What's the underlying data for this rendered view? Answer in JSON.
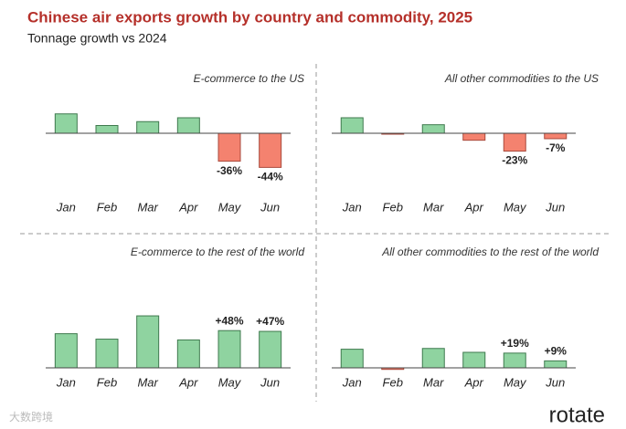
{
  "title": "Chinese air exports growth by country and commodity, 2025",
  "subtitle": "Tonnage growth vs 2024",
  "brand": "rotate",
  "watermark": "大数跨境",
  "chart_data": [
    {
      "type": "bar",
      "title": "E-commerce to the US",
      "categories": [
        "Jan",
        "Feb",
        "Mar",
        "Apr",
        "May",
        "Jun"
      ],
      "values": [
        25,
        10,
        15,
        20,
        -36,
        -44
      ],
      "value_labels": [
        null,
        null,
        null,
        null,
        "-36%",
        "-44%"
      ],
      "ylim": [
        -50,
        50
      ],
      "positive_color": "#8fd3a0",
      "negative_color": "#f4826f"
    },
    {
      "type": "bar",
      "title": "All other commodities to the US",
      "categories": [
        "Jan",
        "Feb",
        "Mar",
        "Apr",
        "May",
        "Jun"
      ],
      "values": [
        20,
        -1,
        11,
        -9,
        -23,
        -7
      ],
      "value_labels": [
        null,
        null,
        null,
        null,
        "-23%",
        "-7%"
      ],
      "ylim": [
        -50,
        50
      ],
      "positive_color": "#8fd3a0",
      "negative_color": "#f4826f"
    },
    {
      "type": "bar",
      "title": "E-commerce to the rest of the world",
      "categories": [
        "Jan",
        "Feb",
        "Mar",
        "Apr",
        "May",
        "Jun"
      ],
      "values": [
        44,
        37,
        67,
        36,
        48,
        47
      ],
      "value_labels": [
        null,
        null,
        null,
        null,
        "+48%",
        "+47%"
      ],
      "ylim": [
        -10,
        70
      ],
      "positive_color": "#8fd3a0",
      "negative_color": "#f4826f"
    },
    {
      "type": "bar",
      "title": "All other commodities to the rest of the world",
      "categories": [
        "Jan",
        "Feb",
        "Mar",
        "Apr",
        "May",
        "Jun"
      ],
      "values": [
        24,
        -2,
        25,
        20,
        19,
        9
      ],
      "value_labels": [
        null,
        null,
        null,
        null,
        "+19%",
        "+9%"
      ],
      "ylim": [
        -10,
        70
      ],
      "positive_color": "#8fd3a0",
      "negative_color": "#f4826f"
    }
  ]
}
